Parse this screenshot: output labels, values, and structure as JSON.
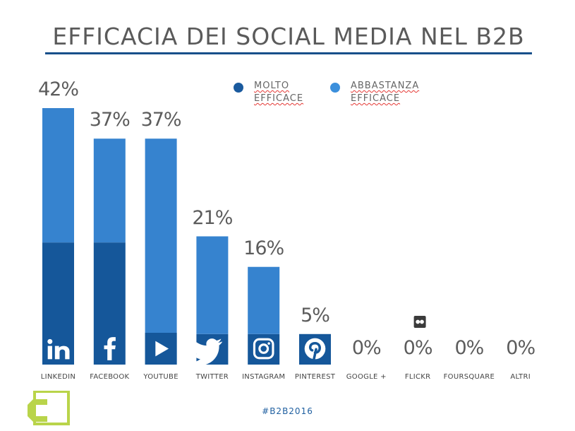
{
  "title": "EFFICACIA DEI SOCIAL MEDIA NEL B2B",
  "legend": [
    {
      "line1": "MOLTO",
      "line2": "EFFICACE",
      "color": "#1a5a9e"
    },
    {
      "line1": "ABBASTANZA",
      "line2": "EFFICACE",
      "color": "#3b8fdc"
    }
  ],
  "colors": {
    "molto": "#15579a",
    "abbastanza": "#3683cf",
    "rule": "#174f8a"
  },
  "hashtag": "#B2B2016",
  "chart_data": {
    "type": "bar",
    "stacked": true,
    "title": "EFFICACIA DEI SOCIAL MEDIA NEL B2B",
    "xlabel": "",
    "ylabel": "",
    "ylim": [
      0,
      42
    ],
    "categories": [
      "LINKEDIN",
      "FACEBOOK",
      "YOUTUBE",
      "TWITTER",
      "INSTAGRAM",
      "PINTEREST",
      "GOOGLE +",
      "FLICKR",
      "FOURSQUARE",
      "ALTRI"
    ],
    "totals_labels": [
      "42%",
      "37%",
      "37%",
      "21%",
      "16%",
      "5%",
      "0%",
      "0%",
      "0%",
      "0%"
    ],
    "series": [
      {
        "name": "MOLTO EFFICACE",
        "values": [
          20,
          20,
          0,
          5,
          5,
          5,
          0,
          0,
          0,
          0
        ]
      },
      {
        "name": "ABBASTANZA EFFICACE",
        "values": [
          22,
          17,
          37,
          16,
          11,
          0,
          0,
          0,
          0,
          0
        ]
      }
    ],
    "icons": [
      "linkedin-icon",
      "facebook-icon",
      "youtube-icon",
      "twitter-icon",
      "instagram-icon",
      "pinterest-icon",
      "",
      "flickr-icon",
      "",
      ""
    ],
    "legend_position": "top-center",
    "grid": false
  }
}
